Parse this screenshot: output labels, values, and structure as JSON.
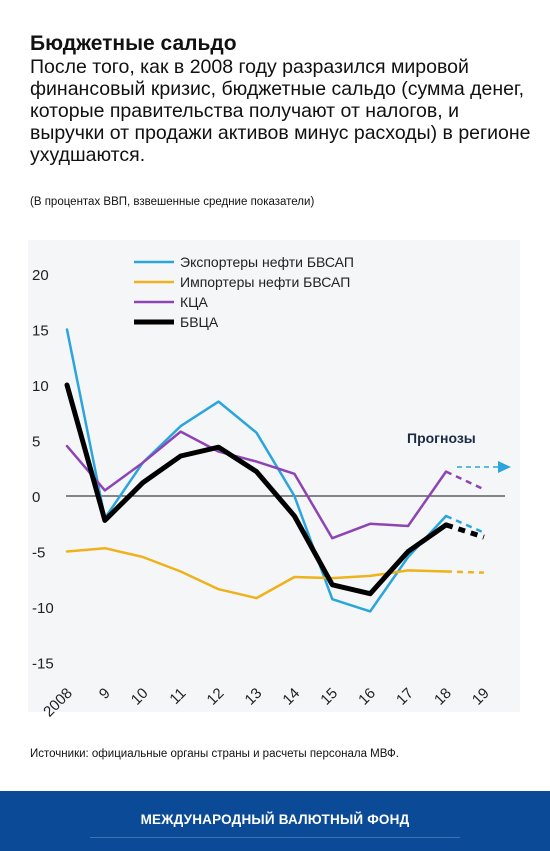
{
  "header": {
    "title": "Бюджетные сальдо",
    "subtitle": "После того, как в 2008 году разразился мировой финансовый кризис, бюджетные сальдо  (сумма денег, которые правительства получают от налогов, и выручки от продажи активов минус расходы) в регионе ухудшаются.",
    "note": "(В процентах ВВП, взвешенные средние показатели)"
  },
  "source": "Источники: официальные органы страны и расчеты персонала МВФ.",
  "footer": {
    "label": "МЕЖДУНАРОДНЫЙ ВАЛЮТНЫЙ ФОНД",
    "color": "#0b4a97"
  },
  "chart_data": {
    "type": "line",
    "categories": [
      "2008",
      "9",
      "10",
      "11",
      "12",
      "13",
      "14",
      "15",
      "16",
      "17",
      "18",
      "19"
    ],
    "ylim": [
      -15,
      20
    ],
    "yticks": [
      20,
      15,
      10,
      5,
      0,
      -5,
      -10,
      -15
    ],
    "forecast_start_index": 10,
    "annotation": "Прогнозы",
    "legend_position": "top-left",
    "series": [
      {
        "name": "Экспортеры нефти БВСАП",
        "color": "#2aa6dc",
        "width": 2.5,
        "values": [
          15.0,
          -2.0,
          3.0,
          6.3,
          8.5,
          5.7,
          0.0,
          -9.3,
          -10.4,
          -5.5,
          -1.8,
          -3.3
        ]
      },
      {
        "name": "Импортеры нефти БВСАП",
        "color": "#efb21b",
        "width": 2.5,
        "values": [
          -5.0,
          -4.7,
          -5.5,
          -6.8,
          -8.4,
          -9.2,
          -7.3,
          -7.4,
          -7.2,
          -6.7,
          -6.8,
          -6.9
        ]
      },
      {
        "name": "КЦА",
        "color": "#8e44b5",
        "width": 2.5,
        "values": [
          4.5,
          0.5,
          3.0,
          5.8,
          4.0,
          3.1,
          2.0,
          -3.8,
          -2.5,
          -2.7,
          2.2,
          0.6
        ]
      },
      {
        "name": "БВЦА",
        "color": "#000000",
        "width": 5,
        "values": [
          10.0,
          -2.2,
          1.2,
          3.6,
          4.4,
          2.2,
          -1.8,
          -8.0,
          -8.8,
          -5.0,
          -2.6,
          -3.7
        ]
      }
    ]
  }
}
